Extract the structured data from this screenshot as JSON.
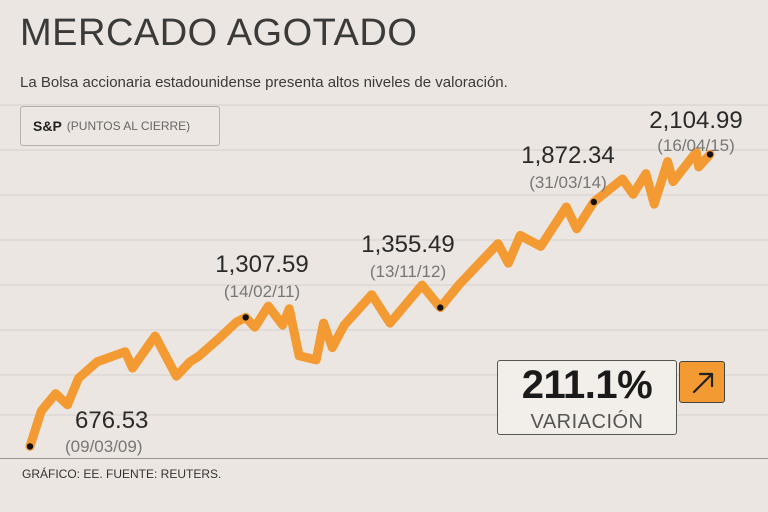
{
  "header": {
    "title": "MERCADO AGOTADO",
    "subtitle": "La Bolsa accionaria estadounidense presenta altos niveles de valoración."
  },
  "index_label": {
    "name": "S&P",
    "unit": "(PUNTOS AL CIERRE)"
  },
  "variation": {
    "value": "211.1%",
    "label": "VARIACIÓN",
    "icon": "arrow-up-right-icon"
  },
  "source": "GRÁFICO: EE. FUENTE: REUTERS.",
  "colors": {
    "line": "#f39a32",
    "background": "#ebe6e1",
    "grid": "#d6d0ca",
    "marker": "#111111"
  },
  "chart_data": {
    "type": "line",
    "series": [
      {
        "values": [
          [
            "2009-03-09",
            676.53
          ],
          [
            "2009-04-15",
            850
          ],
          [
            "2009-06-01",
            935
          ],
          [
            "2009-07-10",
            880
          ],
          [
            "2009-08-15",
            1010
          ],
          [
            "2009-10-15",
            1090
          ],
          [
            "2010-01-15",
            1140
          ],
          [
            "2010-02-08",
            1060
          ],
          [
            "2010-04-23",
            1217
          ],
          [
            "2010-07-02",
            1020
          ],
          [
            "2010-08-15",
            1090
          ],
          [
            "2010-09-15",
            1120
          ],
          [
            "2010-11-15",
            1200
          ],
          [
            "2011-01-15",
            1285
          ],
          [
            "2011-02-14",
            1307.59
          ],
          [
            "2011-03-16",
            1260
          ],
          [
            "2011-04-29",
            1363
          ],
          [
            "2011-06-15",
            1270
          ],
          [
            "2011-07-07",
            1350
          ],
          [
            "2011-08-08",
            1120
          ],
          [
            "2011-10-03",
            1100
          ],
          [
            "2011-10-27",
            1280
          ],
          [
            "2011-11-25",
            1160
          ],
          [
            "2012-01-03",
            1270
          ],
          [
            "2012-04-02",
            1419
          ],
          [
            "2012-06-01",
            1280
          ],
          [
            "2012-09-14",
            1466
          ],
          [
            "2012-11-13",
            1355.49
          ],
          [
            "2013-01-15",
            1470
          ],
          [
            "2013-05-21",
            1669
          ],
          [
            "2013-06-24",
            1573
          ],
          [
            "2013-08-02",
            1709
          ],
          [
            "2013-10-08",
            1655
          ],
          [
            "2013-12-31",
            1848
          ],
          [
            "2014-02-03",
            1741
          ],
          [
            "2014-03-31",
            1872.34
          ],
          [
            "2014-07-03",
            1985
          ],
          [
            "2014-08-07",
            1910
          ],
          [
            "2014-09-18",
            2011
          ],
          [
            "2014-10-15",
            1862
          ],
          [
            "2014-11-28",
            2070
          ],
          [
            "2014-12-16",
            1972
          ],
          [
            "2015-03-02",
            2117
          ],
          [
            "2015-03-10",
            2044
          ],
          [
            "2015-04-16",
            2104.99
          ]
        ]
      }
    ],
    "annotations": [
      {
        "date": "2009-03-09",
        "value": 676.53,
        "value_label": "676.53",
        "date_label": "(09/03/09)"
      },
      {
        "date": "2011-02-14",
        "value": 1307.59,
        "value_label": "1,307.59",
        "date_label": "(14/02/11)"
      },
      {
        "date": "2012-11-13",
        "value": 1355.49,
        "value_label": "1,355.49",
        "date_label": "(13/11/12)"
      },
      {
        "date": "2014-03-31",
        "value": 1872.34,
        "value_label": "1,872.34",
        "date_label": "(31/03/14)"
      },
      {
        "date": "2015-04-16",
        "value": 2104.99,
        "value_label": "2,104.99",
        "date_label": "(16/04/15)"
      }
    ],
    "xlim": [
      "2009-03-09",
      "2015-04-16"
    ],
    "ylim": [
      620,
      2200
    ],
    "grid": "horizontal"
  }
}
